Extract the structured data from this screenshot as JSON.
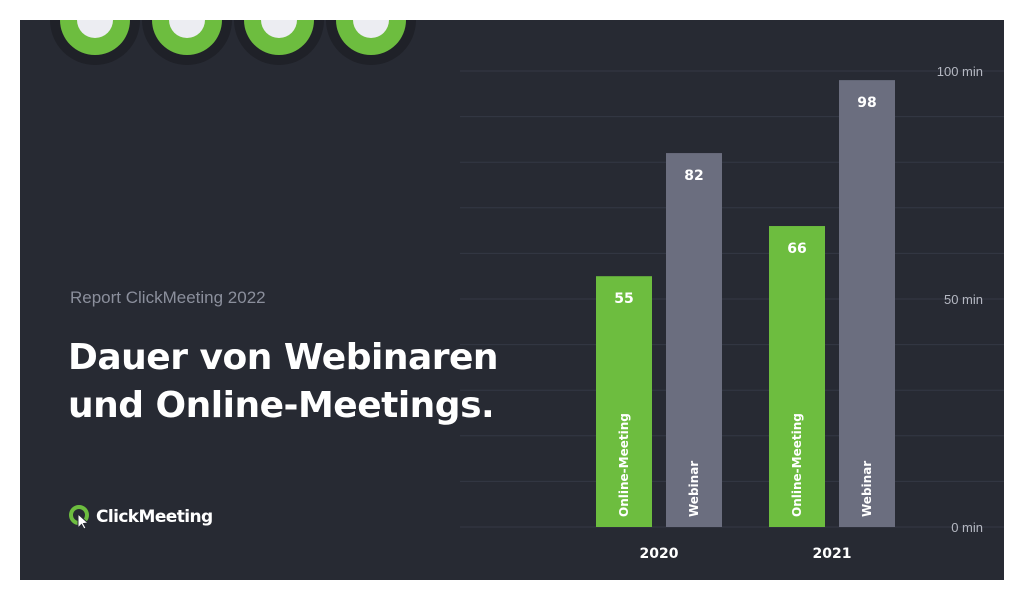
{
  "subtitle": "Report ClickMeeting 2022",
  "title_line1": "Dauer von Webinaren",
  "title_line2": "und Online-Meetings.",
  "logo_text": "ClickMeeting",
  "colors": {
    "background": "#272a33",
    "online_meeting": "#6dbd3f",
    "webinar": "#6b6e7f"
  },
  "chart_data": {
    "type": "bar",
    "categories": [
      "2020",
      "2021"
    ],
    "series": [
      {
        "name": "Online-Meeting",
        "values": [
          55,
          66
        ]
      },
      {
        "name": "Webinar",
        "values": [
          82,
          98
        ]
      }
    ],
    "yticks": [
      "0 min",
      "50 min",
      "100 min"
    ],
    "ylim": [
      0,
      100
    ],
    "grid": true
  }
}
